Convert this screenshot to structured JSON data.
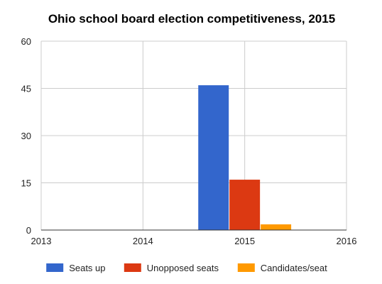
{
  "chart_data": {
    "type": "bar",
    "title": "Ohio school board election competitiveness, 2015",
    "xlabel": "",
    "ylabel": "",
    "x_ticks": [
      "2013",
      "2014",
      "2015",
      "2016"
    ],
    "y_ticks": [
      "0",
      "15",
      "30",
      "45",
      "60"
    ],
    "xlim": [
      2013,
      2016
    ],
    "ylim": [
      0,
      60
    ],
    "categories": [
      "2015"
    ],
    "series": [
      {
        "name": "Seats up",
        "values": [
          46
        ],
        "color": "#3366cc"
      },
      {
        "name": "Unopposed seats",
        "values": [
          16
        ],
        "color": "#dc3912"
      },
      {
        "name": "Candidates/seat",
        "values": [
          1.8
        ],
        "color": "#ff9900"
      }
    ],
    "grid": true,
    "legend_position": "bottom"
  }
}
